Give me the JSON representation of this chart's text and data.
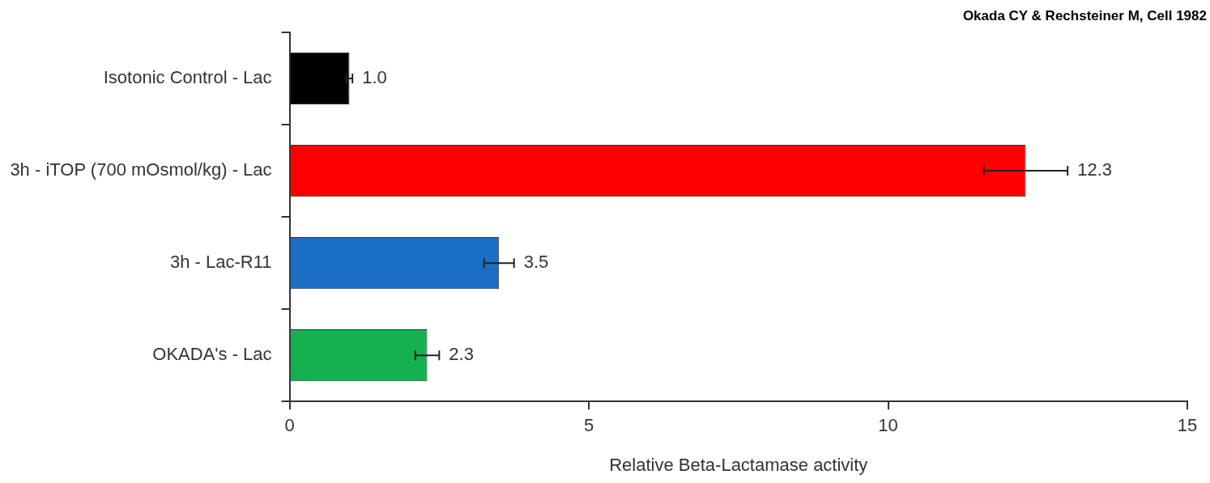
{
  "chart_data": {
    "type": "bar",
    "orientation": "horizontal",
    "categories": [
      "Isotonic Control - Lac",
      "3h - iTOP (700 mOsmol/kg) - Lac",
      "3h - Lac-R11",
      "OKADA's - Lac"
    ],
    "values": [
      1.0,
      12.3,
      3.5,
      2.3
    ],
    "colors": [
      "#000000",
      "#ff0000",
      "#1a6fc4",
      "#17b050"
    ],
    "errors": [
      0.05,
      0.7,
      0.25,
      0.2
    ],
    "value_labels": [
      "1.0",
      "12.3",
      "3.5",
      "2.3"
    ],
    "xlabel": "Relative Beta-Lactamase activity",
    "xlim": [
      0,
      15
    ],
    "xticks": [
      0,
      5,
      10,
      15
    ],
    "grid": false,
    "legend": false,
    "annotations": [
      "Okada CY & Rechsteiner M, Cell 1982"
    ]
  }
}
